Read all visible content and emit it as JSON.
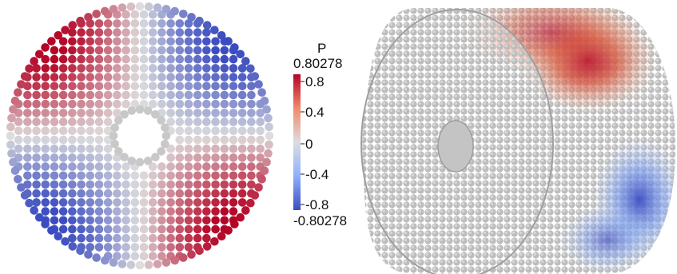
{
  "colorbar": {
    "title": "P",
    "max_label": "0.80278",
    "min_label": "-0.80278",
    "ticks": [
      "0.8",
      "0.4",
      "0",
      "-0.4",
      "-0.8"
    ],
    "range": [
      -0.80278,
      0.80278
    ],
    "colors": {
      "low": "#3b4cc0",
      "mid": "#dddddd",
      "high": "#b40426"
    }
  },
  "views": [
    {
      "id": "cross-section",
      "description_icon": "particle-disk"
    },
    {
      "id": "cylinder-3d",
      "description_icon": "particle-cylinder"
    }
  ]
}
